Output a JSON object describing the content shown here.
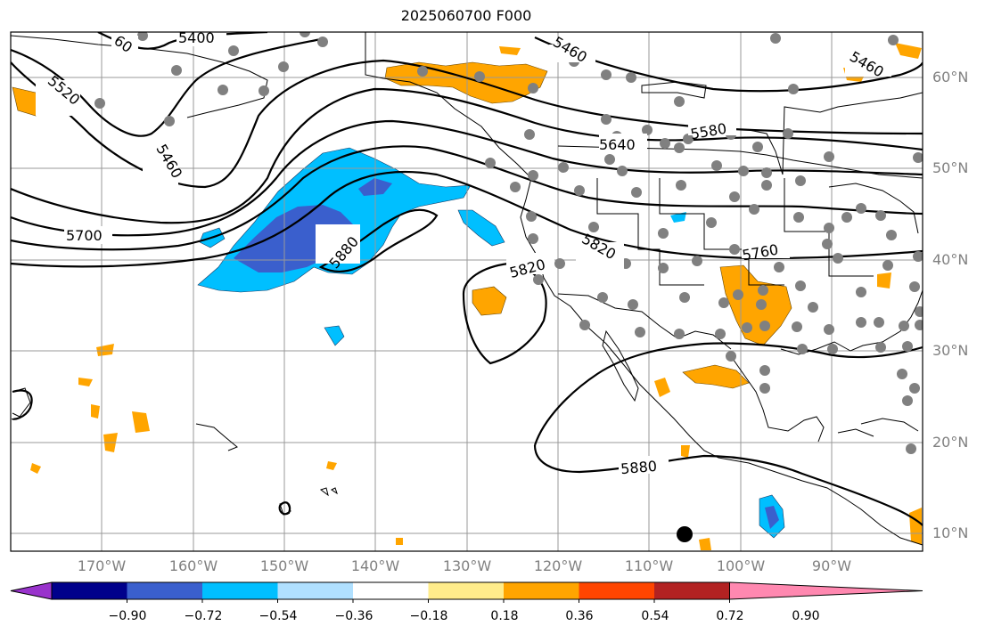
{
  "title": "2025060700 F000",
  "colors": {
    "positive_light": "#ffa500",
    "negative_light": "#00bfff",
    "negative_mid": "#3a5fcd",
    "station_dot": "#808080",
    "gridline": "#999999",
    "contour": "#000000"
  },
  "map": {
    "lat_labels": [
      "60°N",
      "50°N",
      "40°N",
      "30°N",
      "20°N",
      "10°N"
    ],
    "lon_labels": [
      "170°W",
      "160°W",
      "150°W",
      "140°W",
      "130°W",
      "120°W",
      "110°W",
      "100°W",
      "90°W"
    ],
    "height_contour_labels": [
      "60",
      "5400",
      "5460",
      "5460",
      "5460",
      "5520",
      "5580",
      "5640",
      "5700",
      "5760",
      "5820",
      "5820",
      "5880",
      "5880"
    ]
  },
  "colorbar": {
    "colors": [
      "#9933cc",
      "#00008b",
      "#3a5fcd",
      "#00bfff",
      "#b0e0ff",
      "#ffffff",
      "#ffec8b",
      "#ffa500",
      "#ff4500",
      "#b22222",
      "#ff88b0"
    ],
    "tick_labels": [
      "−0.90",
      "−0.72",
      "−0.54",
      "−0.36",
      "−0.18",
      "0.18",
      "0.36",
      "0.54",
      "0.72",
      "0.90"
    ]
  }
}
